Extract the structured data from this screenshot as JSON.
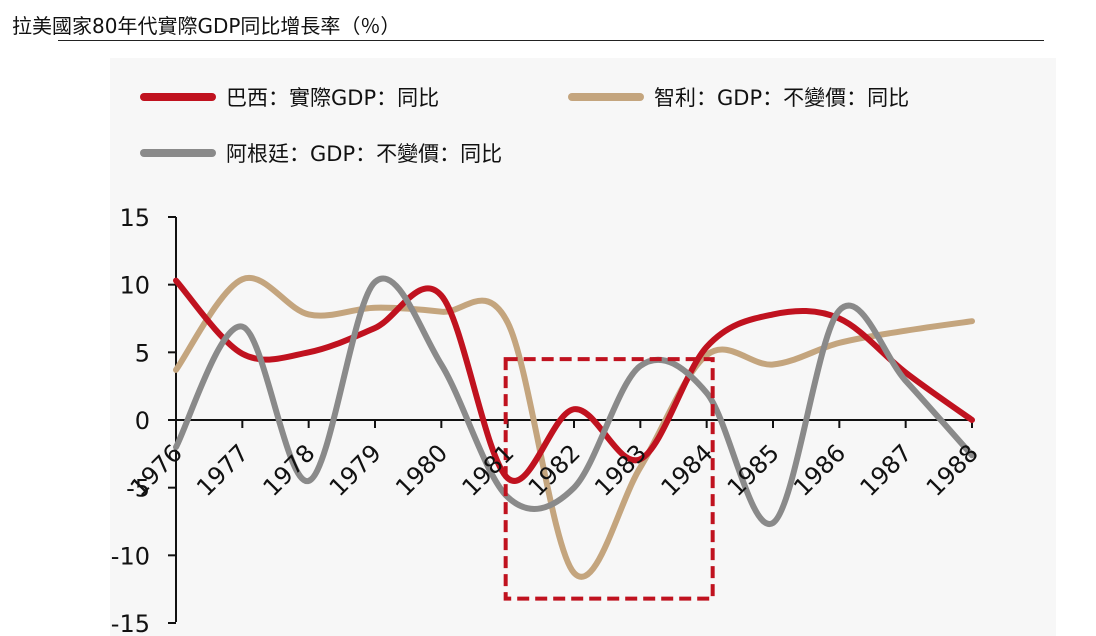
{
  "title": "拉美國家80年代實際GDP同比增長率（％）",
  "colors": {
    "brazil": "#c0121f",
    "chile": "#c4a57e",
    "argentina": "#8a8a8a",
    "highlight": "#c0121f",
    "axis": "#111111"
  },
  "chart_data": {
    "type": "line",
    "title": "拉美國家80年代實際GDP同比增長率（％）",
    "categories": [
      "1976",
      "1977",
      "1978",
      "1979",
      "1980",
      "1981",
      "1982",
      "1983",
      "1984",
      "1985",
      "1986",
      "1987",
      "1988"
    ],
    "yticks": [
      "15",
      "10",
      "5",
      "0",
      "-5",
      "-10",
      "-15"
    ],
    "ylim": [
      -15,
      15
    ],
    "legend_position": "top",
    "series": [
      {
        "name": "巴西：實際GDP：同比",
        "color": "#c0121f",
        "values": [
          10.3,
          4.9,
          5.0,
          6.8,
          9.2,
          -4.3,
          0.8,
          -2.9,
          5.4,
          7.8,
          7.5,
          3.5,
          0.0
        ]
      },
      {
        "name": "智利：GDP：不變價：同比",
        "color": "#c4a57e",
        "values": [
          3.7,
          10.4,
          7.8,
          8.3,
          8.0,
          7.2,
          -11.3,
          -3.5,
          4.8,
          4.1,
          5.7,
          6.6,
          7.3
        ]
      },
      {
        "name": "阿根廷：GDP：不變價：同比",
        "color": "#8a8a8a",
        "values": [
          -2.0,
          6.9,
          -4.5,
          10.2,
          4.1,
          -5.7,
          -5.0,
          4.0,
          2.0,
          -7.6,
          8.1,
          2.9,
          -2.6
        ]
      }
    ],
    "annotations": [
      {
        "type": "dashed-box",
        "label": "highlight 1981-1984",
        "x_start": 1981,
        "x_end": 1984,
        "y_top": 4.5,
        "y_bottom": -13.2
      }
    ]
  }
}
